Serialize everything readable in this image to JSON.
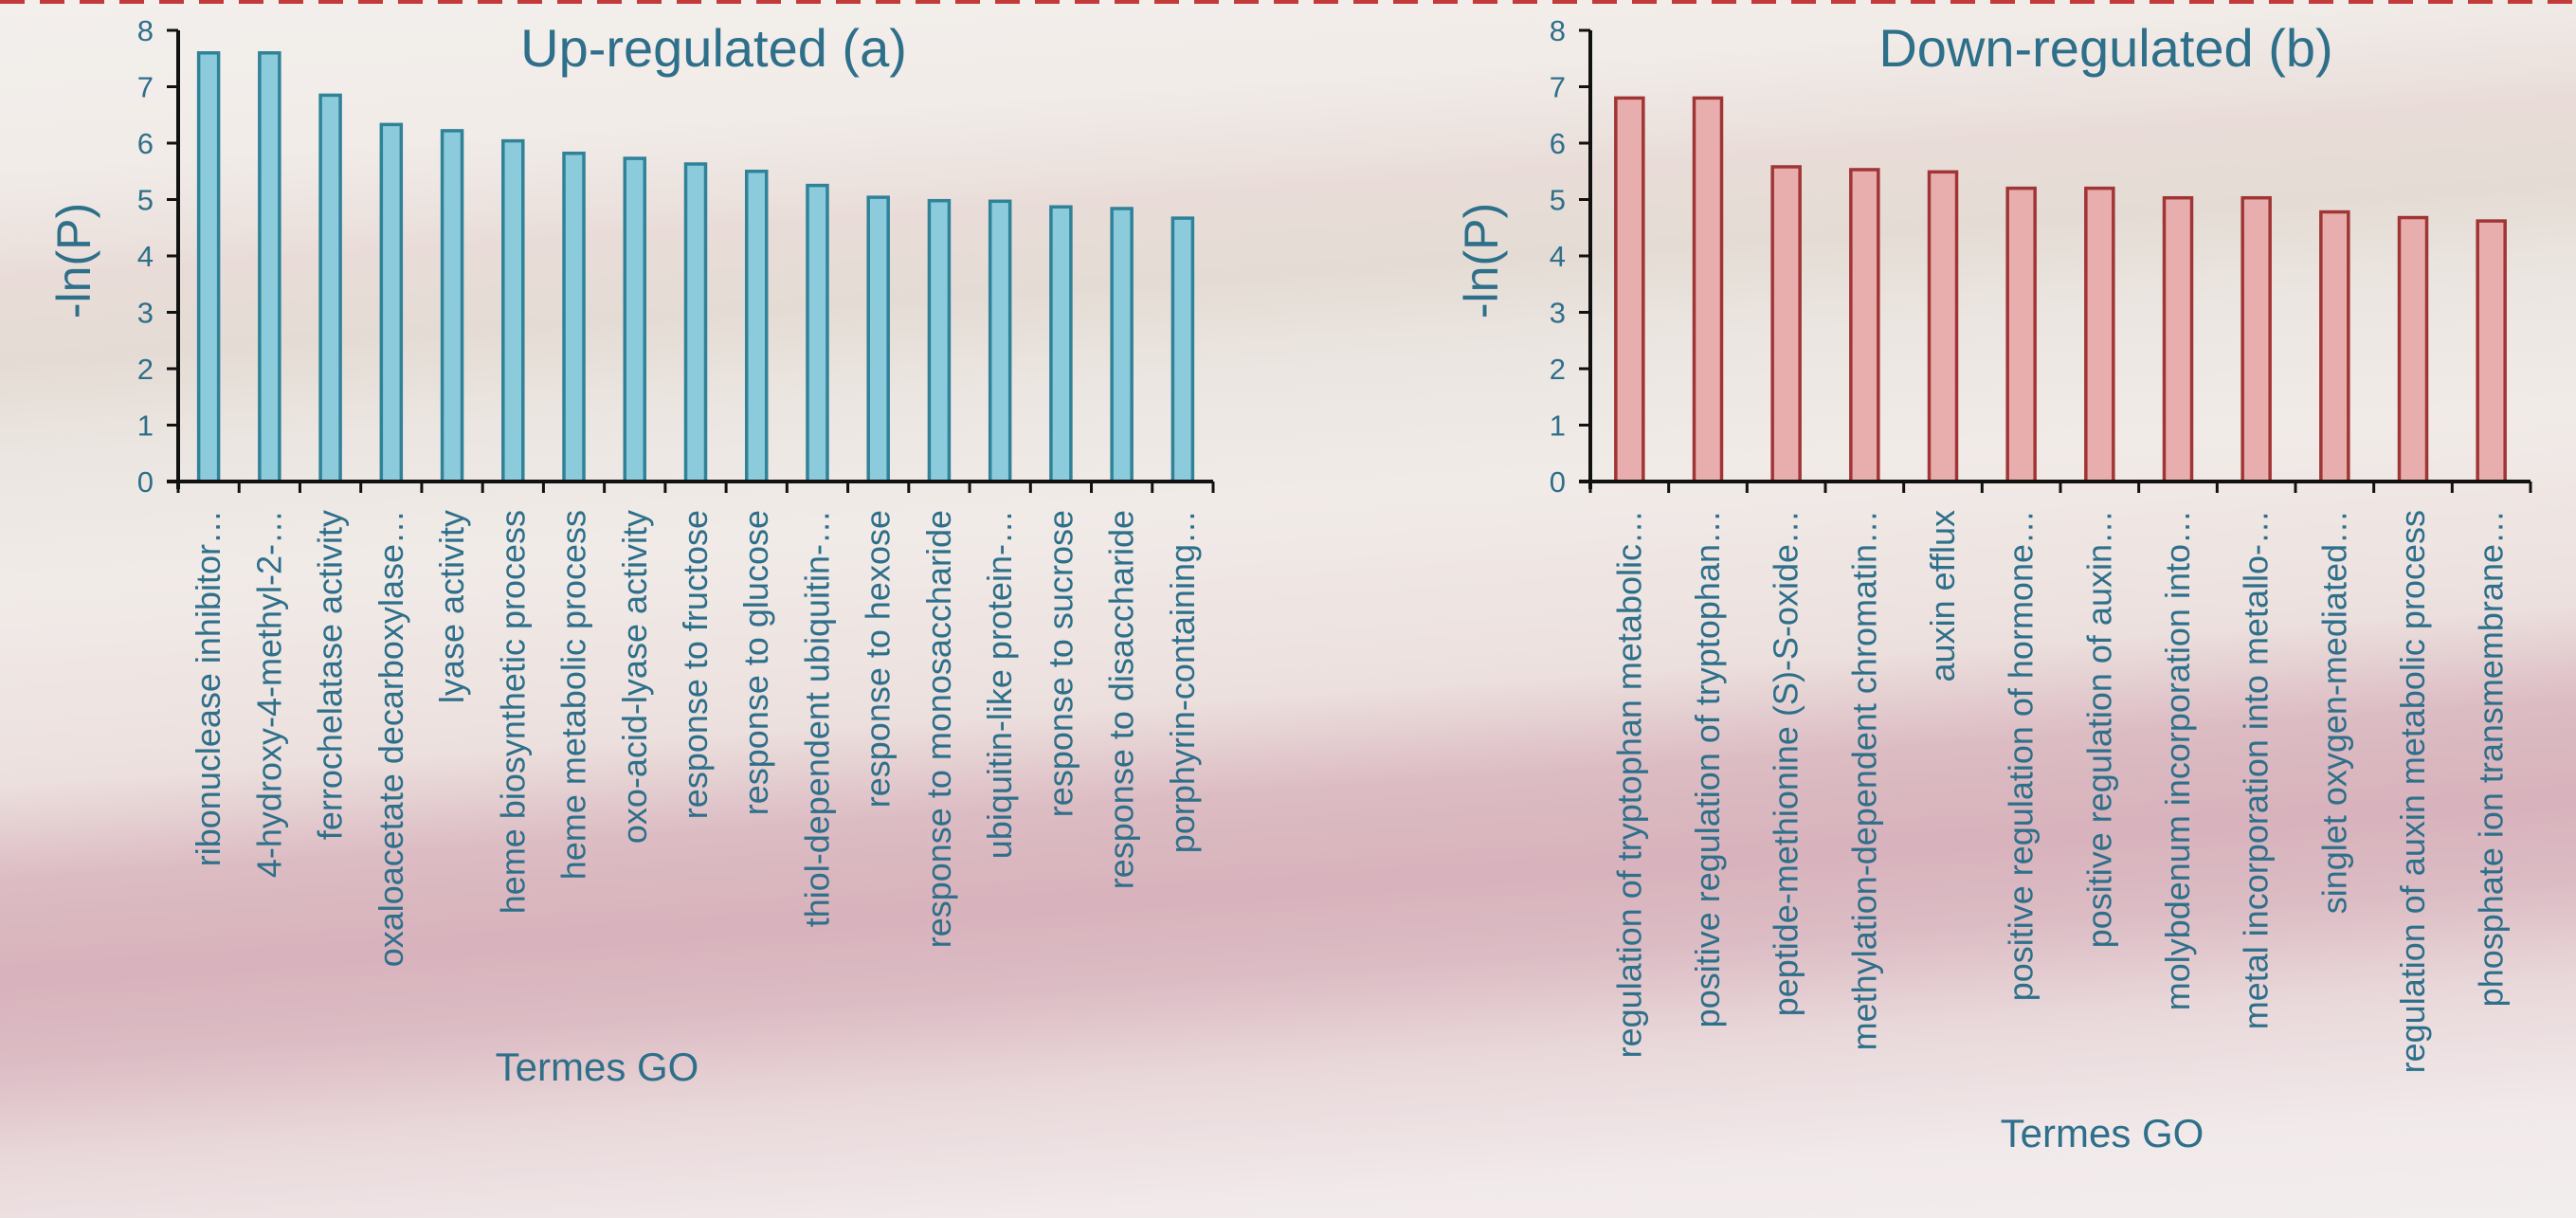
{
  "chart_data": [
    {
      "type": "bar",
      "title": "Up-regulated (a)",
      "xlabel": "Termes GO",
      "ylabel": "-ln(P)",
      "ylim": [
        0,
        8
      ],
      "yticks": [
        0,
        1,
        2,
        3,
        4,
        5,
        6,
        7,
        8
      ],
      "grid": false,
      "colors": {
        "fill": "#8ccbdb",
        "stroke": "#2f8298",
        "text": "#2e6f8a"
      },
      "categories": [
        "ribonuclease inhibitor…",
        "4-hydroxy-4-methyl-2-…",
        "ferrochelatase activity",
        "oxaloacetate decarboxylase…",
        "lyase activity",
        "heme biosynthetic process",
        "heme metabolic process",
        "oxo-acid-lyase activity",
        "response to fructose",
        "response to glucose",
        "thiol-dependent ubiquitin-…",
        "response to hexose",
        "response to monosaccharide",
        "ubiquitin-like protein-…",
        "response to sucrose",
        "response to disaccharide",
        "porphyrin-containing…"
      ],
      "values": [
        7.6,
        7.6,
        6.85,
        6.33,
        6.22,
        6.04,
        5.82,
        5.73,
        5.63,
        5.5,
        5.25,
        5.04,
        4.98,
        4.97,
        4.87,
        4.84,
        4.67
      ]
    },
    {
      "type": "bar",
      "title": "Down-regulated (b)",
      "xlabel": "Termes GO",
      "ylabel": "-ln(P)",
      "ylim": [
        0,
        8
      ],
      "yticks": [
        0,
        1,
        2,
        3,
        4,
        5,
        6,
        7,
        8
      ],
      "grid": false,
      "colors": {
        "fill": "#e8aeae",
        "stroke": "#a13535",
        "text": "#2e6f8a"
      },
      "categories": [
        "regulation of tryptophan metabolic…",
        "positive regulation of tryptophan…",
        "peptide-methionine (S)-S-oxide…",
        "methylation-dependent chromatin…",
        "auxin efflux",
        "positive regulation of hormone…",
        "positive regulation of auxin…",
        "molybdenum incorporation into…",
        "metal incorporation into metallo-…",
        "singlet oxygen-mediated…",
        "regulation of auxin metabolic process",
        "phosphate ion transmembrane…"
      ],
      "values": [
        6.8,
        6.8,
        5.58,
        5.53,
        5.49,
        5.2,
        5.2,
        5.03,
        5.03,
        4.78,
        4.68,
        4.62
      ]
    }
  ]
}
